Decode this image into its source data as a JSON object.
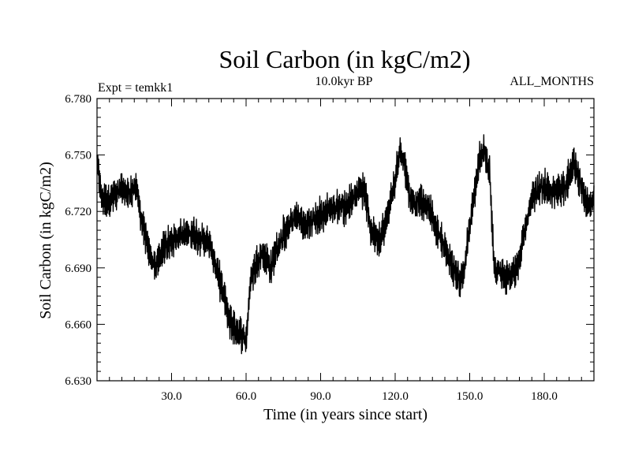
{
  "chart_data": {
    "type": "line",
    "title": "Soil Carbon (in kgC/m2)",
    "subtitle": "10.0kyr BP",
    "left_label": "Expt = temkk1",
    "right_label": "ALL_MONTHS",
    "xlabel": "Time (in years since start)",
    "ylabel": "Soil Carbon (in kgC/m2)",
    "xlim": [
      0,
      200
    ],
    "ylim": [
      6.63,
      6.78
    ],
    "xticks": [
      {
        "value": 30,
        "label": "30.0"
      },
      {
        "value": 60,
        "label": "60.0"
      },
      {
        "value": 90,
        "label": "90.0"
      },
      {
        "value": 120,
        "label": "120.0"
      },
      {
        "value": 150,
        "label": "150.0"
      },
      {
        "value": 180,
        "label": "180.0"
      }
    ],
    "yticks": [
      {
        "value": 6.63,
        "label": "6.630"
      },
      {
        "value": 6.66,
        "label": "6.660"
      },
      {
        "value": 6.69,
        "label": "6.690"
      },
      {
        "value": 6.72,
        "label": "6.720"
      },
      {
        "value": 6.75,
        "label": "6.750"
      },
      {
        "value": 6.78,
        "label": "6.780"
      }
    ],
    "x_minor_step": 5,
    "y_minor_step": 0.005,
    "grid": false,
    "line_color": "#000000",
    "series": [
      {
        "name": "Soil Carbon",
        "x": [
          0,
          2,
          4,
          6,
          8,
          10,
          12,
          14,
          16,
          18,
          20,
          22,
          24,
          26,
          28,
          30,
          32,
          34,
          36,
          38,
          40,
          42,
          44,
          46,
          48,
          50,
          52,
          54,
          56,
          58,
          60,
          62,
          64,
          66,
          68,
          70,
          72,
          74,
          76,
          78,
          80,
          82,
          84,
          86,
          88,
          90,
          92,
          94,
          96,
          98,
          100,
          102,
          104,
          106,
          108,
          110,
          112,
          114,
          116,
          118,
          120,
          122,
          124,
          126,
          128,
          130,
          132,
          134,
          136,
          138,
          140,
          142,
          144,
          146,
          148,
          150,
          152,
          154,
          156,
          158,
          160,
          162,
          164,
          166,
          168,
          170,
          172,
          174,
          176,
          178,
          180,
          182,
          184,
          186,
          188,
          190,
          192,
          194,
          196,
          198,
          200
        ],
        "mean": [
          6.745,
          6.728,
          6.726,
          6.727,
          6.729,
          6.732,
          6.73,
          6.731,
          6.733,
          6.714,
          6.703,
          6.695,
          6.69,
          6.698,
          6.703,
          6.705,
          6.706,
          6.707,
          6.707,
          6.709,
          6.707,
          6.706,
          6.704,
          6.7,
          6.69,
          6.68,
          6.67,
          6.66,
          6.657,
          6.655,
          6.652,
          6.685,
          6.692,
          6.697,
          6.695,
          6.69,
          6.699,
          6.705,
          6.71,
          6.713,
          6.718,
          6.715,
          6.712,
          6.714,
          6.716,
          6.718,
          6.72,
          6.721,
          6.722,
          6.723,
          6.722,
          6.725,
          6.729,
          6.733,
          6.728,
          6.711,
          6.707,
          6.706,
          6.713,
          6.724,
          6.737,
          6.752,
          6.745,
          6.726,
          6.724,
          6.728,
          6.723,
          6.72,
          6.713,
          6.707,
          6.7,
          6.694,
          6.688,
          6.682,
          6.69,
          6.712,
          6.731,
          6.748,
          6.752,
          6.741,
          6.687,
          6.688,
          6.683,
          6.686,
          6.689,
          6.694,
          6.708,
          6.72,
          6.729,
          6.732,
          6.734,
          6.73,
          6.729,
          6.732,
          6.733,
          6.738,
          6.745,
          6.739,
          6.728,
          6.722,
          6.727
        ],
        "amplitude": 0.008,
        "samples_per_year": 6
      }
    ]
  }
}
